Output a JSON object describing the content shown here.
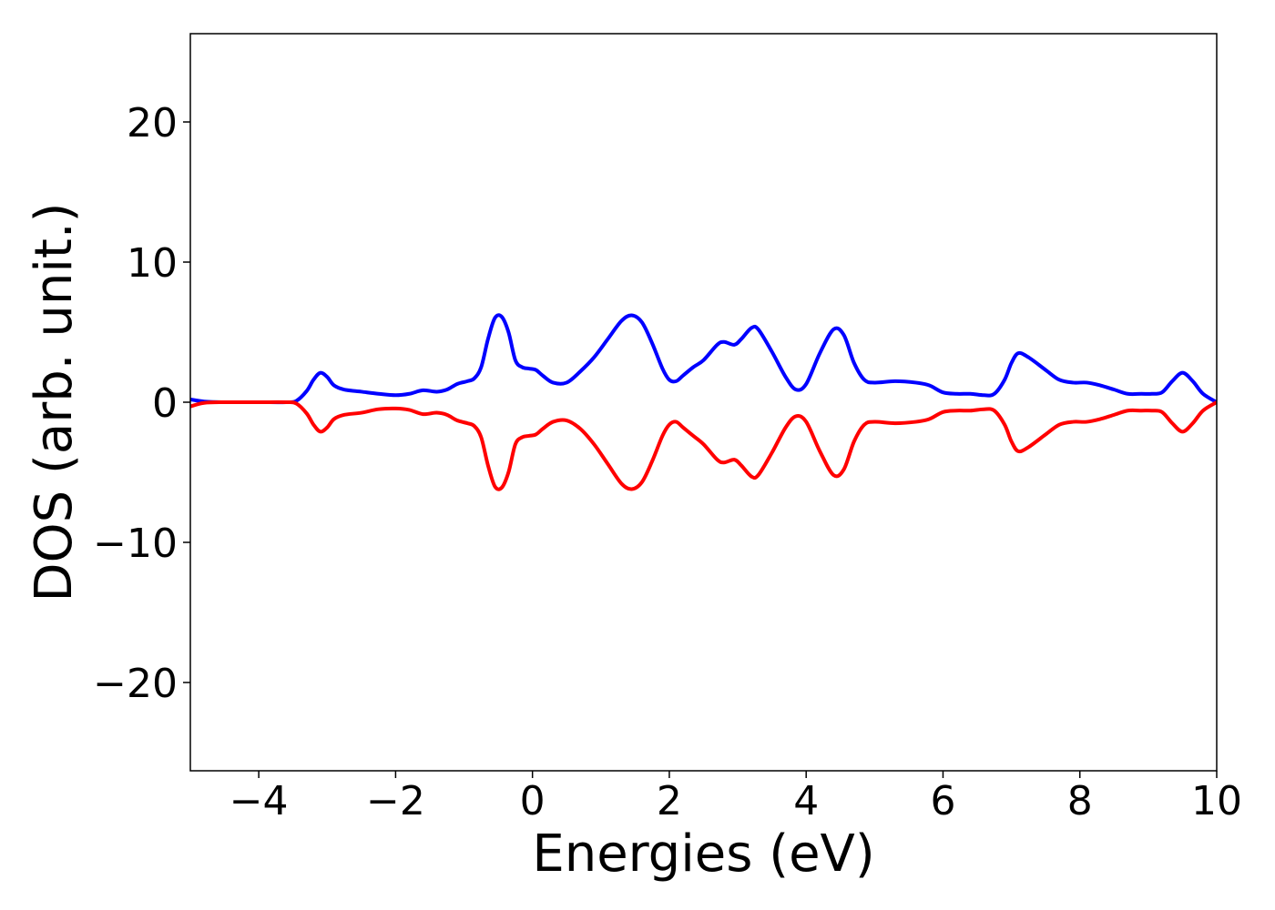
{
  "chart_data": {
    "type": "line",
    "xlabel": "Energies (eV)",
    "ylabel": "DOS (arb. unit.)",
    "xlim": [
      -5,
      10
    ],
    "ylim": [
      -26.3,
      26.3
    ],
    "xticks": [
      -4,
      -2,
      0,
      2,
      4,
      6,
      8,
      10
    ],
    "xtick_labels": [
      "−4",
      "−2",
      "0",
      "2",
      "4",
      "6",
      "8",
      "10"
    ],
    "yticks": [
      20,
      10,
      0,
      -10,
      -20
    ],
    "ytick_labels": [
      "20",
      "10",
      "0",
      "−10",
      "−20"
    ],
    "grid": false,
    "series": [
      {
        "color": "#0000ff",
        "x": [
          -5.0,
          -4.8,
          -4.5,
          -4.0,
          -3.6,
          -3.45,
          -3.3,
          -3.2,
          -3.1,
          -3.0,
          -2.9,
          -2.75,
          -2.5,
          -2.25,
          -2.0,
          -1.8,
          -1.6,
          -1.4,
          -1.25,
          -1.1,
          -0.95,
          -0.85,
          -0.75,
          -0.65,
          -0.55,
          -0.45,
          -0.35,
          -0.25,
          -0.15,
          -0.05,
          0.05,
          0.15,
          0.3,
          0.5,
          0.7,
          0.9,
          1.1,
          1.3,
          1.45,
          1.6,
          1.75,
          1.9,
          2.0,
          2.1,
          2.2,
          2.35,
          2.5,
          2.7,
          2.8,
          2.95,
          3.05,
          3.2,
          3.3,
          3.5,
          3.7,
          3.85,
          4.0,
          4.2,
          4.4,
          4.55,
          4.7,
          4.85,
          5.0,
          5.3,
          5.6,
          5.8,
          6.0,
          6.2,
          6.4,
          6.6,
          6.75,
          6.9,
          7.0,
          7.1,
          7.25,
          7.5,
          7.7,
          7.9,
          8.1,
          8.3,
          8.5,
          8.7,
          8.9,
          9.05,
          9.2,
          9.35,
          9.5,
          9.65,
          9.8,
          10.0
        ],
        "y": [
          0.2,
          0.05,
          0.0,
          0.0,
          0.0,
          0.1,
          0.8,
          1.6,
          2.1,
          1.8,
          1.2,
          0.9,
          0.75,
          0.6,
          0.5,
          0.6,
          0.85,
          0.75,
          0.9,
          1.3,
          1.5,
          1.7,
          2.5,
          4.5,
          6.0,
          6.1,
          5.0,
          3.0,
          2.5,
          2.4,
          2.3,
          1.9,
          1.4,
          1.4,
          2.2,
          3.2,
          4.5,
          5.8,
          6.2,
          5.7,
          4.2,
          2.4,
          1.6,
          1.5,
          1.9,
          2.5,
          3.0,
          4.1,
          4.3,
          4.1,
          4.5,
          5.3,
          5.2,
          3.6,
          1.8,
          0.9,
          1.3,
          3.5,
          5.2,
          4.8,
          2.8,
          1.6,
          1.4,
          1.5,
          1.4,
          1.2,
          0.7,
          0.6,
          0.6,
          0.5,
          0.6,
          1.6,
          2.8,
          3.5,
          3.2,
          2.3,
          1.6,
          1.4,
          1.4,
          1.2,
          0.9,
          0.6,
          0.6,
          0.6,
          0.7,
          1.5,
          2.1,
          1.5,
          0.6,
          0.0
        ]
      },
      {
        "color": "#ff0000",
        "x": [
          -5.0,
          -4.8,
          -4.5,
          -4.0,
          -3.6,
          -3.45,
          -3.3,
          -3.2,
          -3.1,
          -3.0,
          -2.9,
          -2.75,
          -2.5,
          -2.25,
          -2.0,
          -1.8,
          -1.6,
          -1.4,
          -1.25,
          -1.1,
          -0.95,
          -0.85,
          -0.75,
          -0.65,
          -0.55,
          -0.45,
          -0.35,
          -0.25,
          -0.15,
          -0.05,
          0.05,
          0.15,
          0.3,
          0.5,
          0.7,
          0.9,
          1.1,
          1.3,
          1.45,
          1.6,
          1.75,
          1.9,
          2.0,
          2.1,
          2.2,
          2.35,
          2.5,
          2.7,
          2.8,
          2.95,
          3.05,
          3.2,
          3.3,
          3.5,
          3.7,
          3.85,
          4.0,
          4.2,
          4.4,
          4.55,
          4.7,
          4.85,
          5.0,
          5.3,
          5.6,
          5.8,
          6.0,
          6.2,
          6.4,
          6.6,
          6.75,
          6.9,
          7.0,
          7.1,
          7.25,
          7.5,
          7.7,
          7.9,
          8.1,
          8.3,
          8.5,
          8.7,
          8.9,
          9.05,
          9.2,
          9.35,
          9.5,
          9.65,
          9.8,
          10.0
        ],
        "y": [
          -0.3,
          -0.05,
          0.0,
          0.0,
          0.0,
          -0.1,
          -0.8,
          -1.6,
          -2.1,
          -1.8,
          -1.2,
          -0.9,
          -0.75,
          -0.5,
          -0.45,
          -0.55,
          -0.85,
          -0.75,
          -0.9,
          -1.3,
          -1.5,
          -1.7,
          -2.5,
          -4.5,
          -6.0,
          -6.1,
          -5.0,
          -3.0,
          -2.5,
          -2.4,
          -2.3,
          -1.9,
          -1.4,
          -1.3,
          -1.9,
          -3.0,
          -4.4,
          -5.8,
          -6.2,
          -5.7,
          -4.2,
          -2.4,
          -1.6,
          -1.4,
          -1.8,
          -2.4,
          -3.0,
          -4.1,
          -4.3,
          -4.1,
          -4.5,
          -5.3,
          -5.2,
          -3.6,
          -1.8,
          -1.0,
          -1.4,
          -3.5,
          -5.2,
          -4.8,
          -2.8,
          -1.6,
          -1.4,
          -1.5,
          -1.4,
          -1.2,
          -0.7,
          -0.6,
          -0.6,
          -0.5,
          -0.6,
          -1.6,
          -2.8,
          -3.5,
          -3.2,
          -2.3,
          -1.6,
          -1.4,
          -1.4,
          -1.2,
          -0.9,
          -0.6,
          -0.6,
          -0.6,
          -0.7,
          -1.5,
          -2.1,
          -1.5,
          -0.6,
          0.0
        ]
      }
    ]
  }
}
